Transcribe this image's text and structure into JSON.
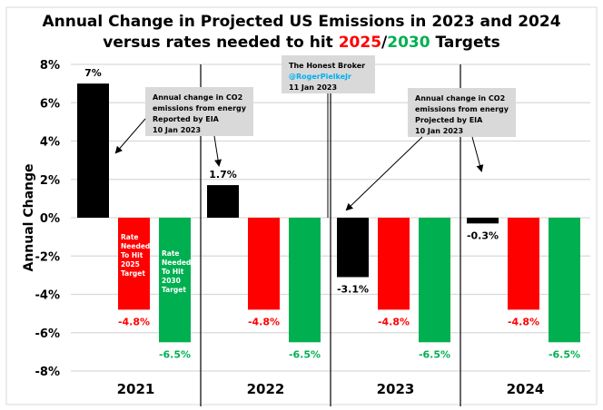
{
  "chart_data": {
    "type": "bar",
    "title_line1": "Annual Change in Projected US Emissions in 2023 and 2024",
    "title_line2_prefix": "versus rates needed to hit ",
    "title_line2_2025": "2025",
    "title_line2_sep": "/",
    "title_line2_2030": "2030",
    "title_line2_suffix": " Targets",
    "ylabel": "Annual Change",
    "ylim": [
      -8,
      8
    ],
    "yticks": [
      8,
      6,
      4,
      2,
      0,
      -2,
      -4,
      -6,
      -8
    ],
    "ytick_labels": [
      "8%",
      "6%",
      "4%",
      "2%",
      "0%",
      "-2%",
      "-4%",
      "-6%",
      "-8%"
    ],
    "grid": true,
    "categories": [
      "2021",
      "2022",
      "2023",
      "2024"
    ],
    "series": [
      {
        "name": "Annual change in CO2 emissions from energy",
        "color": "#000000",
        "label_color": "#000000",
        "values": [
          7,
          1.7,
          -3.1,
          -0.3
        ],
        "labels": [
          "7%",
          "1.7%",
          "-3.1%",
          "-0.3%"
        ]
      },
      {
        "name": "Rate Needed To Hit 2025 Target",
        "color": "#ff0000",
        "label_color": "#ff0000",
        "values": [
          -4.8,
          -4.8,
          -4.8,
          -4.8
        ],
        "labels": [
          "-4.8%",
          "-4.8%",
          "-4.8%",
          "-4.8%"
        ]
      },
      {
        "name": "Rate Needed To Hit 2030 Target",
        "color": "#00b050",
        "label_color": "#00b050",
        "values": [
          -6.5,
          -6.5,
          -6.5,
          -6.5
        ],
        "labels": [
          "-6.5%",
          "-6.5%",
          "-6.5%",
          "-6.5%"
        ]
      }
    ],
    "in_bar_labels": {
      "red": [
        "Rate",
        "Needed",
        "To Hit",
        "2025",
        "Target"
      ],
      "green": [
        "Rate",
        "Needed",
        "To Hit",
        "2030",
        "Target"
      ]
    },
    "annotations": {
      "reported": [
        "Annual change in CO2",
        "emissions from energy",
        "Reported by EIA",
        "10 Jan 2023"
      ],
      "projected": [
        "Annual change in CO2",
        "emissions from energy",
        "Projected by EIA",
        "10 Jan 2023"
      ],
      "credit": [
        "The Honest Broker",
        "@RogerPielkeJr",
        "11 Jan 2023"
      ]
    },
    "colors": {
      "red": "#ff0000",
      "green": "#00b050",
      "handle": "#00b0f0",
      "box": "#d9d9d9",
      "grid": "#d9d9d9"
    }
  }
}
